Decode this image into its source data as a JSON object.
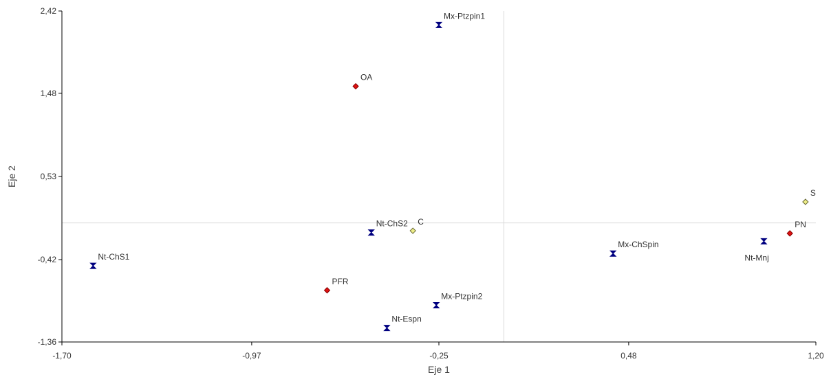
{
  "chart_data": {
    "type": "scatter",
    "title": "",
    "xlabel": "Eje 1",
    "ylabel": "Eje 2",
    "xlim": [
      -1.7,
      1.2
    ],
    "ylim": [
      -1.36,
      2.42
    ],
    "xticks": [
      "-1,70",
      "-0,97",
      "-0,25",
      "0,48",
      "1,20"
    ],
    "yticks": [
      "-1,36",
      "-0,42",
      "0,53",
      "1,48",
      "2,42"
    ],
    "xtick_values": [
      -1.7,
      -0.97,
      -0.25,
      0.48,
      1.2
    ],
    "ytick_values": [
      -1.36,
      -0.42,
      0.53,
      1.48,
      2.42
    ],
    "reference_lines": {
      "x": 0.0,
      "y": 0.0
    },
    "colors": {
      "hourglass": "#000080",
      "red_diamond": "#dd1111",
      "yellow_diamond": "#eeee88",
      "reference_line": "#d9d9d9",
      "axis": "#000000"
    },
    "points": [
      {
        "label": "Mx-Ptzpin1",
        "x": -0.25,
        "y": 2.26,
        "marker": "hourglass",
        "label_pos": "above-right"
      },
      {
        "label": "OA",
        "x": -0.57,
        "y": 1.56,
        "marker": "red_diamond",
        "label_pos": "above-right"
      },
      {
        "label": "S",
        "x": 1.16,
        "y": 0.24,
        "marker": "yellow_diamond",
        "label_pos": "above-right"
      },
      {
        "label": "Nt-ChS2",
        "x": -0.51,
        "y": -0.11,
        "marker": "hourglass",
        "label_pos": "above-right"
      },
      {
        "label": "C",
        "x": -0.35,
        "y": -0.09,
        "marker": "yellow_diamond",
        "label_pos": "above-right"
      },
      {
        "label": "PN",
        "x": 1.1,
        "y": -0.12,
        "marker": "red_diamond",
        "label_pos": "above-right"
      },
      {
        "label": "Nt-Mnj",
        "x": 1.0,
        "y": -0.21,
        "marker": "hourglass",
        "label_pos": "below-left"
      },
      {
        "label": "Mx-ChSpin",
        "x": 0.42,
        "y": -0.35,
        "marker": "hourglass",
        "label_pos": "above-right"
      },
      {
        "label": "Nt-ChS1",
        "x": -1.58,
        "y": -0.49,
        "marker": "hourglass",
        "label_pos": "above-right"
      },
      {
        "label": "PFR",
        "x": -0.68,
        "y": -0.77,
        "marker": "red_diamond",
        "label_pos": "above-right"
      },
      {
        "label": "Mx-Ptzpin2",
        "x": -0.26,
        "y": -0.94,
        "marker": "hourglass",
        "label_pos": "above-right"
      },
      {
        "label": "Nt-Espn",
        "x": -0.45,
        "y": -1.2,
        "marker": "hourglass",
        "label_pos": "above-right"
      }
    ]
  }
}
